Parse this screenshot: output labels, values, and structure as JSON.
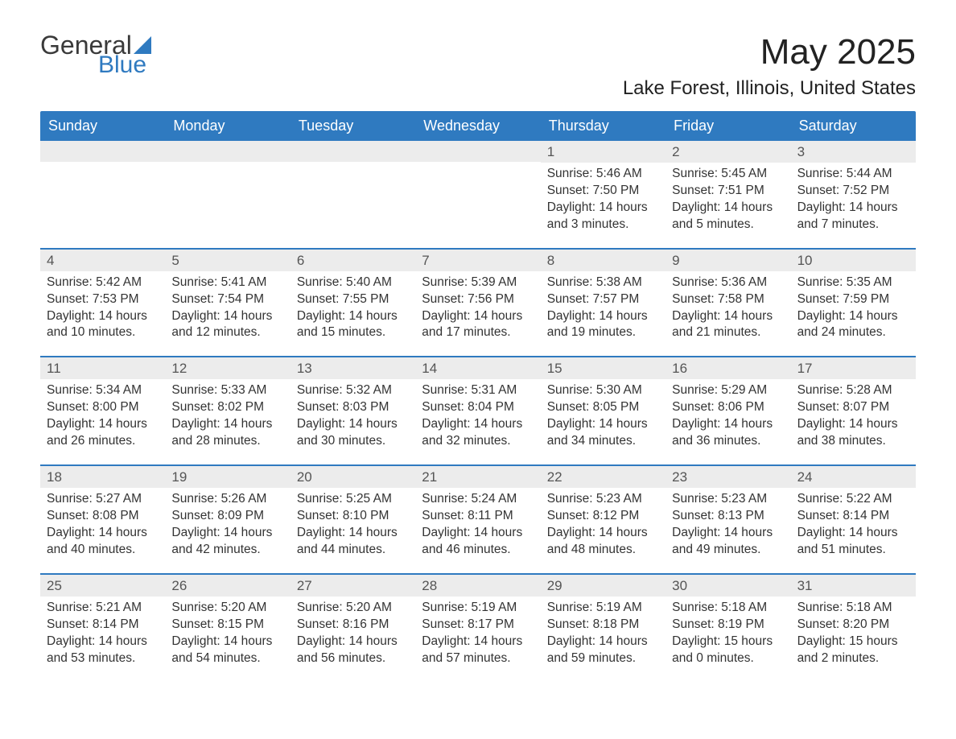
{
  "logo": {
    "word1": "General",
    "word2": "Blue"
  },
  "title": "May 2025",
  "location": "Lake Forest, Illinois, United States",
  "day_names": [
    "Sunday",
    "Monday",
    "Tuesday",
    "Wednesday",
    "Thursday",
    "Friday",
    "Saturday"
  ],
  "colors": {
    "header_bg": "#2f7ac0",
    "header_text": "#ffffff",
    "daynum_bg": "#ececec",
    "body_text": "#333333",
    "week_divider": "#2f7ac0",
    "logo_blue": "#2f7ac0",
    "page_bg": "#ffffff"
  },
  "typography": {
    "title_fontsize": 44,
    "location_fontsize": 24,
    "dayheader_fontsize": 18,
    "daynum_fontsize": 17,
    "body_fontsize": 15.5
  },
  "weeks": [
    [
      null,
      null,
      null,
      null,
      {
        "n": "1",
        "sunrise": "Sunrise: 5:46 AM",
        "sunset": "Sunset: 7:50 PM",
        "daylight": "Daylight: 14 hours and 3 minutes."
      },
      {
        "n": "2",
        "sunrise": "Sunrise: 5:45 AM",
        "sunset": "Sunset: 7:51 PM",
        "daylight": "Daylight: 14 hours and 5 minutes."
      },
      {
        "n": "3",
        "sunrise": "Sunrise: 5:44 AM",
        "sunset": "Sunset: 7:52 PM",
        "daylight": "Daylight: 14 hours and 7 minutes."
      }
    ],
    [
      {
        "n": "4",
        "sunrise": "Sunrise: 5:42 AM",
        "sunset": "Sunset: 7:53 PM",
        "daylight": "Daylight: 14 hours and 10 minutes."
      },
      {
        "n": "5",
        "sunrise": "Sunrise: 5:41 AM",
        "sunset": "Sunset: 7:54 PM",
        "daylight": "Daylight: 14 hours and 12 minutes."
      },
      {
        "n": "6",
        "sunrise": "Sunrise: 5:40 AM",
        "sunset": "Sunset: 7:55 PM",
        "daylight": "Daylight: 14 hours and 15 minutes."
      },
      {
        "n": "7",
        "sunrise": "Sunrise: 5:39 AM",
        "sunset": "Sunset: 7:56 PM",
        "daylight": "Daylight: 14 hours and 17 minutes."
      },
      {
        "n": "8",
        "sunrise": "Sunrise: 5:38 AM",
        "sunset": "Sunset: 7:57 PM",
        "daylight": "Daylight: 14 hours and 19 minutes."
      },
      {
        "n": "9",
        "sunrise": "Sunrise: 5:36 AM",
        "sunset": "Sunset: 7:58 PM",
        "daylight": "Daylight: 14 hours and 21 minutes."
      },
      {
        "n": "10",
        "sunrise": "Sunrise: 5:35 AM",
        "sunset": "Sunset: 7:59 PM",
        "daylight": "Daylight: 14 hours and 24 minutes."
      }
    ],
    [
      {
        "n": "11",
        "sunrise": "Sunrise: 5:34 AM",
        "sunset": "Sunset: 8:00 PM",
        "daylight": "Daylight: 14 hours and 26 minutes."
      },
      {
        "n": "12",
        "sunrise": "Sunrise: 5:33 AM",
        "sunset": "Sunset: 8:02 PM",
        "daylight": "Daylight: 14 hours and 28 minutes."
      },
      {
        "n": "13",
        "sunrise": "Sunrise: 5:32 AM",
        "sunset": "Sunset: 8:03 PM",
        "daylight": "Daylight: 14 hours and 30 minutes."
      },
      {
        "n": "14",
        "sunrise": "Sunrise: 5:31 AM",
        "sunset": "Sunset: 8:04 PM",
        "daylight": "Daylight: 14 hours and 32 minutes."
      },
      {
        "n": "15",
        "sunrise": "Sunrise: 5:30 AM",
        "sunset": "Sunset: 8:05 PM",
        "daylight": "Daylight: 14 hours and 34 minutes."
      },
      {
        "n": "16",
        "sunrise": "Sunrise: 5:29 AM",
        "sunset": "Sunset: 8:06 PM",
        "daylight": "Daylight: 14 hours and 36 minutes."
      },
      {
        "n": "17",
        "sunrise": "Sunrise: 5:28 AM",
        "sunset": "Sunset: 8:07 PM",
        "daylight": "Daylight: 14 hours and 38 minutes."
      }
    ],
    [
      {
        "n": "18",
        "sunrise": "Sunrise: 5:27 AM",
        "sunset": "Sunset: 8:08 PM",
        "daylight": "Daylight: 14 hours and 40 minutes."
      },
      {
        "n": "19",
        "sunrise": "Sunrise: 5:26 AM",
        "sunset": "Sunset: 8:09 PM",
        "daylight": "Daylight: 14 hours and 42 minutes."
      },
      {
        "n": "20",
        "sunrise": "Sunrise: 5:25 AM",
        "sunset": "Sunset: 8:10 PM",
        "daylight": "Daylight: 14 hours and 44 minutes."
      },
      {
        "n": "21",
        "sunrise": "Sunrise: 5:24 AM",
        "sunset": "Sunset: 8:11 PM",
        "daylight": "Daylight: 14 hours and 46 minutes."
      },
      {
        "n": "22",
        "sunrise": "Sunrise: 5:23 AM",
        "sunset": "Sunset: 8:12 PM",
        "daylight": "Daylight: 14 hours and 48 minutes."
      },
      {
        "n": "23",
        "sunrise": "Sunrise: 5:23 AM",
        "sunset": "Sunset: 8:13 PM",
        "daylight": "Daylight: 14 hours and 49 minutes."
      },
      {
        "n": "24",
        "sunrise": "Sunrise: 5:22 AM",
        "sunset": "Sunset: 8:14 PM",
        "daylight": "Daylight: 14 hours and 51 minutes."
      }
    ],
    [
      {
        "n": "25",
        "sunrise": "Sunrise: 5:21 AM",
        "sunset": "Sunset: 8:14 PM",
        "daylight": "Daylight: 14 hours and 53 minutes."
      },
      {
        "n": "26",
        "sunrise": "Sunrise: 5:20 AM",
        "sunset": "Sunset: 8:15 PM",
        "daylight": "Daylight: 14 hours and 54 minutes."
      },
      {
        "n": "27",
        "sunrise": "Sunrise: 5:20 AM",
        "sunset": "Sunset: 8:16 PM",
        "daylight": "Daylight: 14 hours and 56 minutes."
      },
      {
        "n": "28",
        "sunrise": "Sunrise: 5:19 AM",
        "sunset": "Sunset: 8:17 PM",
        "daylight": "Daylight: 14 hours and 57 minutes."
      },
      {
        "n": "29",
        "sunrise": "Sunrise: 5:19 AM",
        "sunset": "Sunset: 8:18 PM",
        "daylight": "Daylight: 14 hours and 59 minutes."
      },
      {
        "n": "30",
        "sunrise": "Sunrise: 5:18 AM",
        "sunset": "Sunset: 8:19 PM",
        "daylight": "Daylight: 15 hours and 0 minutes."
      },
      {
        "n": "31",
        "sunrise": "Sunrise: 5:18 AM",
        "sunset": "Sunset: 8:20 PM",
        "daylight": "Daylight: 15 hours and 2 minutes."
      }
    ]
  ]
}
